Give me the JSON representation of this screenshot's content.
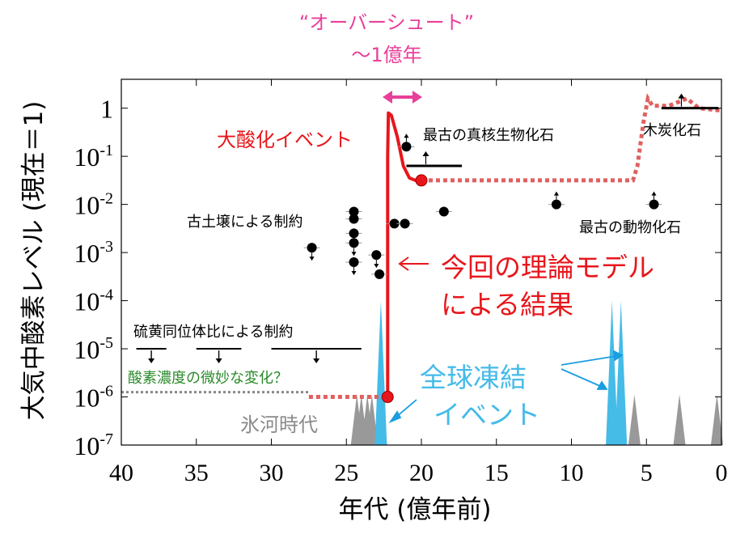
{
  "chart_data": {
    "type": "line",
    "ylabel": "大気中酸素レベル (現在＝1)",
    "xlabel": "年代 (億年前)",
    "x_reversed": true,
    "xlim": [
      40,
      0
    ],
    "ylim_log10": [
      -7,
      0.6
    ],
    "y_scale": "log",
    "x_ticks": [
      "40",
      "35",
      "30",
      "25",
      "20",
      "15",
      "10",
      "5",
      "0"
    ],
    "y_ticks": [
      {
        "base": "1",
        "exp": ""
      },
      {
        "base": "10",
        "exp": "-1"
      },
      {
        "base": "10",
        "exp": "-2"
      },
      {
        "base": "10",
        "exp": "-3"
      },
      {
        "base": "10",
        "exp": "-4"
      },
      {
        "base": "10",
        "exp": "-5"
      },
      {
        "base": "10",
        "exp": "-6"
      },
      {
        "base": "10",
        "exp": "-7"
      }
    ],
    "overshoot_label_1": "“オーバーシュート”",
    "overshoot_label_2": "～1億年",
    "goe_label": "大酸化イベント",
    "model_label_1": "今回の理論モデル",
    "model_label_2": "による結果",
    "eukaryote_label": "最古の真核生物化石",
    "charcoal_label": "木炭化石",
    "animal_label": "最古の動物化石",
    "paleosol_label": "古土壌による制約",
    "sulfur_label": "硫黄同位体比による制約",
    "trace_label": "酸素濃度の微妙な変化？",
    "glacial_label": "氷河時代",
    "snowball_label_1": "全球凍結",
    "snowball_label_2": "イベント",
    "model_series": {
      "name": "今回の理論モデル",
      "color": "#e8161b",
      "solid": [
        [
          22.25,
          -6
        ],
        [
          22.25,
          -1
        ],
        [
          22.2,
          -0.1
        ],
        [
          22.0,
          -0.15
        ],
        [
          21.6,
          -0.6
        ],
        [
          21.2,
          -1.2
        ],
        [
          20.8,
          -1.45
        ],
        [
          20.4,
          -1.5
        ],
        [
          20.0,
          -1.5
        ]
      ],
      "dotted_before": [
        [
          27.5,
          -6
        ],
        [
          22.25,
          -6
        ]
      ],
      "dotted_after": [
        [
          20.0,
          -1.5
        ],
        [
          5.9,
          -1.5
        ],
        [
          5.6,
          -1.2
        ],
        [
          5.2,
          -0.3
        ],
        [
          4.9,
          0.2
        ],
        [
          4.6,
          0.05
        ],
        [
          3.5,
          0.05
        ],
        [
          2.3,
          0.2
        ],
        [
          1.5,
          0.0
        ],
        [
          0,
          -0.05
        ]
      ],
      "dotted_color": "#e06060"
    },
    "trace_series": {
      "name": "酸素濃度の微妙な変化？",
      "color": "#888888",
      "points": [
        [
          40,
          -5.9
        ],
        [
          27.5,
          -5.9
        ]
      ]
    },
    "markers": [
      {
        "x": 22.25,
        "y": -6,
        "color": "#e8161b"
      },
      {
        "x": 20.0,
        "y": -1.5,
        "color": "#e8161b"
      }
    ],
    "constraints": [
      {
        "x": 27.3,
        "y": -2.9,
        "dir": "down"
      },
      {
        "x": 24.5,
        "y": -2.15,
        "dir": "none"
      },
      {
        "x": 24.5,
        "y": -2.3,
        "dir": "none"
      },
      {
        "x": 24.5,
        "y": -2.6,
        "dir": "none"
      },
      {
        "x": 24.5,
        "y": -2.8,
        "dir": "down"
      },
      {
        "x": 24.5,
        "y": -3.2,
        "dir": "down"
      },
      {
        "x": 23.0,
        "y": -3.05,
        "dir": "down"
      },
      {
        "x": 22.8,
        "y": -3.45,
        "dir": "none"
      },
      {
        "x": 21.8,
        "y": -2.4,
        "dir": "none"
      },
      {
        "x": 21.1,
        "y": -2.4,
        "dir": "none"
      },
      {
        "x": 21.0,
        "y": -0.8,
        "dir": "up"
      },
      {
        "x": 18.5,
        "y": -2.15,
        "dir": "none"
      },
      {
        "x": 11.0,
        "y": -2.0,
        "dir": "up"
      },
      {
        "x": 4.5,
        "y": -2.0,
        "dir": "up"
      }
    ],
    "eukaryote_bar": {
      "x1": 21.0,
      "x2": 17.3,
      "y": -1.2
    },
    "charcoal_bar": {
      "x1": 4.0,
      "x2": 0.2,
      "y": 0.0
    },
    "sulfur_bars": [
      [
        39.0,
        37.0
      ],
      [
        35.0,
        32.0
      ],
      [
        30.0,
        24.0
      ]
    ],
    "sulfur_y": -5.0,
    "glacial_periods": [
      {
        "x": 23.3,
        "color": "#999999"
      },
      {
        "x": 24.3,
        "color": "#999999"
      },
      {
        "x": 24.0,
        "color": "#999999"
      },
      {
        "x": 23.6,
        "color": "#999999"
      },
      {
        "x": 22.7,
        "color": "#999999"
      },
      {
        "x": 22.7,
        "color": "#45bbe8"
      },
      {
        "x": 7.3,
        "color": "#45bbe8"
      },
      {
        "x": 6.7,
        "color": "#45bbe8"
      },
      {
        "x": 5.8,
        "color": "#999999"
      },
      {
        "x": 2.8,
        "color": "#999999"
      },
      {
        "x": 0.3,
        "color": "#999999"
      }
    ],
    "colors": {
      "red": "#e8161b",
      "pink": "#e8409a",
      "cyan": "#45bbe8",
      "green": "#2a8a2a",
      "gray": "#999999"
    }
  }
}
